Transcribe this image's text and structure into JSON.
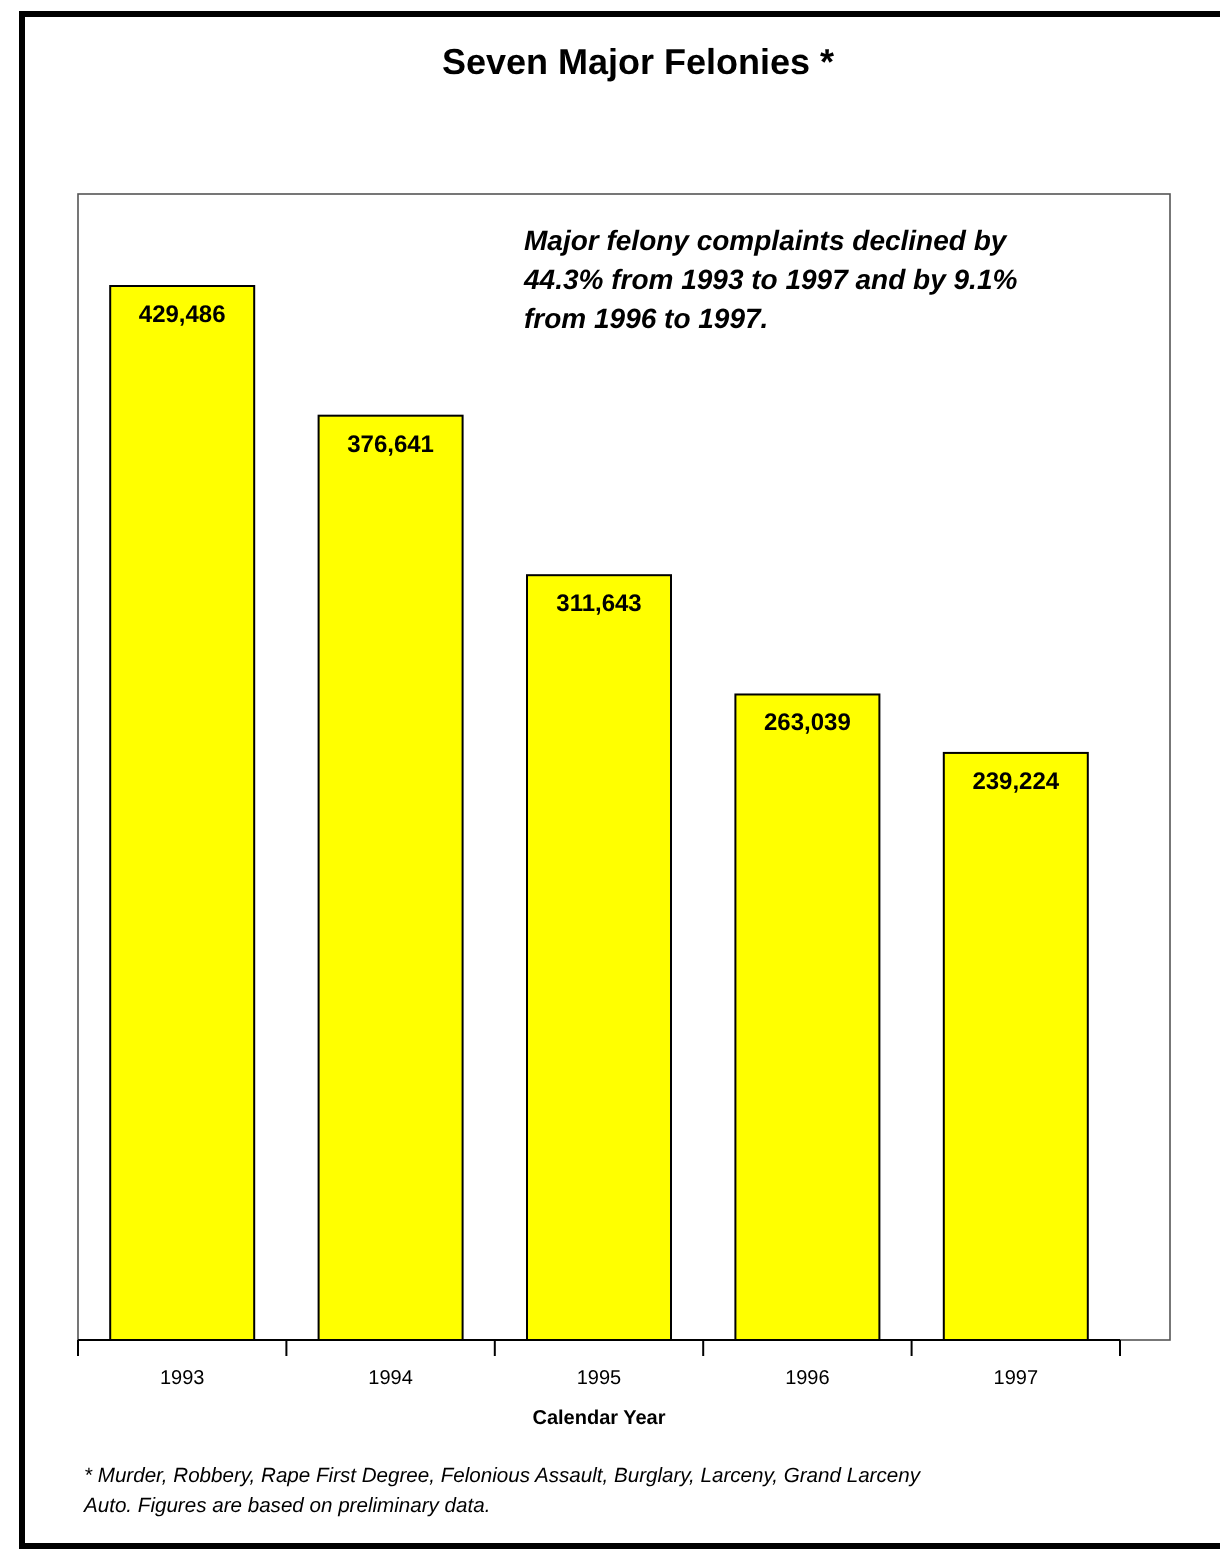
{
  "chart_data": {
    "type": "bar",
    "title": "Seven Major Felonies *",
    "xlabel": "Calendar Year",
    "categories": [
      "1993",
      "1994",
      "1995",
      "1996",
      "1997"
    ],
    "values": [
      429486,
      376641,
      311643,
      263039,
      239224
    ],
    "color": "#ffff00",
    "value_labels": [
      "429,486",
      "376,641",
      "311,643",
      "263,039",
      "239,224"
    ],
    "annotations": [
      "Major felony complaints declined by 44.3% from 1993 to 1997 and by 9.1% from 1996 to 1997.",
      "* Murder, Robbery, Rape First Degree, Felonious Assault, Burglary, Larceny, Grand Larceny Auto. Figures are based on preliminary data."
    ]
  }
}
